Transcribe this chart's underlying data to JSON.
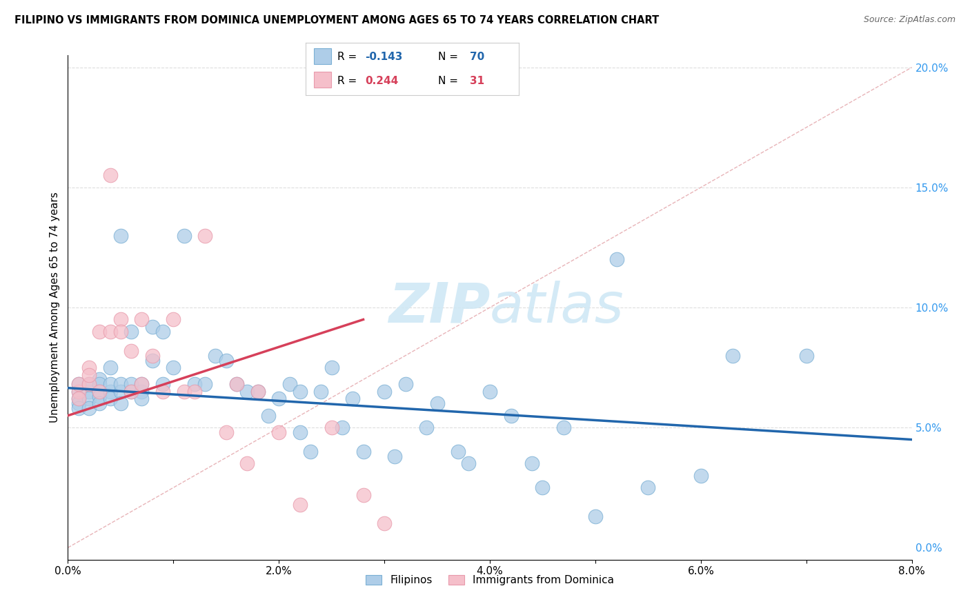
{
  "title": "FILIPINO VS IMMIGRANTS FROM DOMINICA UNEMPLOYMENT AMONG AGES 65 TO 74 YEARS CORRELATION CHART",
  "source": "Source: ZipAtlas.com",
  "ylabel": "Unemployment Among Ages 65 to 74 years",
  "xlim": [
    0.0,
    0.08
  ],
  "ylim": [
    -0.005,
    0.205
  ],
  "blue_color": "#aecde8",
  "pink_color": "#f5bfca",
  "blue_edge_color": "#7aafd4",
  "pink_edge_color": "#e89aab",
  "blue_line_color": "#2166ac",
  "pink_line_color": "#d6405a",
  "dash_line_color": "#e8b4b8",
  "watermark_color": "#d0e8f5",
  "filipinos_x": [
    0.001,
    0.001,
    0.001,
    0.001,
    0.001,
    0.002,
    0.002,
    0.002,
    0.002,
    0.003,
    0.003,
    0.003,
    0.003,
    0.003,
    0.004,
    0.004,
    0.004,
    0.004,
    0.005,
    0.005,
    0.005,
    0.005,
    0.006,
    0.006,
    0.006,
    0.007,
    0.007,
    0.007,
    0.008,
    0.008,
    0.009,
    0.009,
    0.01,
    0.011,
    0.012,
    0.013,
    0.014,
    0.015,
    0.016,
    0.017,
    0.018,
    0.019,
    0.02,
    0.021,
    0.022,
    0.022,
    0.023,
    0.024,
    0.025,
    0.026,
    0.027,
    0.028,
    0.03,
    0.031,
    0.032,
    0.034,
    0.035,
    0.037,
    0.038,
    0.04,
    0.042,
    0.044,
    0.045,
    0.047,
    0.05,
    0.052,
    0.055,
    0.06,
    0.063,
    0.07
  ],
  "filipinos_y": [
    0.065,
    0.062,
    0.068,
    0.06,
    0.058,
    0.065,
    0.068,
    0.062,
    0.058,
    0.07,
    0.065,
    0.068,
    0.063,
    0.06,
    0.065,
    0.068,
    0.062,
    0.075,
    0.13,
    0.065,
    0.06,
    0.068,
    0.09,
    0.065,
    0.068,
    0.065,
    0.062,
    0.068,
    0.092,
    0.078,
    0.09,
    0.068,
    0.075,
    0.13,
    0.068,
    0.068,
    0.08,
    0.078,
    0.068,
    0.065,
    0.065,
    0.055,
    0.062,
    0.068,
    0.048,
    0.065,
    0.04,
    0.065,
    0.075,
    0.05,
    0.062,
    0.04,
    0.065,
    0.038,
    0.068,
    0.05,
    0.06,
    0.04,
    0.035,
    0.065,
    0.055,
    0.035,
    0.025,
    0.05,
    0.013,
    0.12,
    0.025,
    0.03,
    0.08,
    0.08
  ],
  "dominica_x": [
    0.001,
    0.001,
    0.001,
    0.002,
    0.002,
    0.002,
    0.003,
    0.003,
    0.004,
    0.004,
    0.005,
    0.005,
    0.006,
    0.006,
    0.007,
    0.007,
    0.008,
    0.009,
    0.01,
    0.011,
    0.012,
    0.013,
    0.015,
    0.016,
    0.017,
    0.018,
    0.02,
    0.022,
    0.025,
    0.028,
    0.03
  ],
  "dominica_y": [
    0.065,
    0.068,
    0.062,
    0.075,
    0.068,
    0.072,
    0.09,
    0.065,
    0.155,
    0.09,
    0.095,
    0.09,
    0.082,
    0.065,
    0.095,
    0.068,
    0.08,
    0.065,
    0.095,
    0.065,
    0.065,
    0.13,
    0.048,
    0.068,
    0.035,
    0.065,
    0.048,
    0.018,
    0.05,
    0.022,
    0.01
  ],
  "blue_line_x": [
    0.0,
    0.08
  ],
  "blue_line_y": [
    0.0665,
    0.045
  ],
  "pink_line_x": [
    0.0,
    0.028
  ],
  "pink_line_y": [
    0.055,
    0.095
  ],
  "dash_line_x": [
    0.0,
    0.08
  ],
  "dash_line_y": [
    0.0,
    0.2
  ],
  "legend_R_blue": "-0.143",
  "legend_N_blue": "70",
  "legend_R_pink": "0.244",
  "legend_N_pink": "31"
}
